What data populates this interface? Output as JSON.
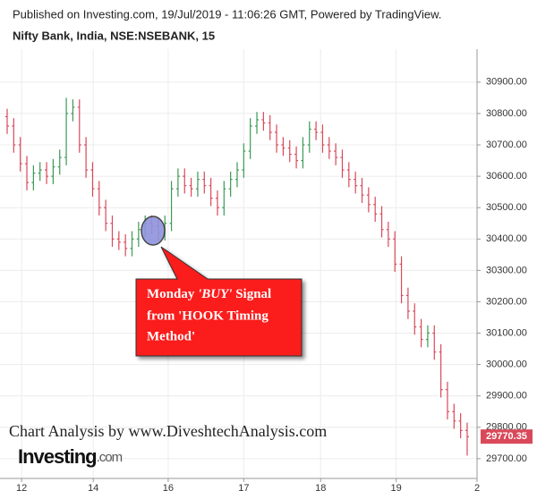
{
  "header": "Published on Investing.com, 19/Jul/2019 - 11:06:26 GMT, Powered by TradingView.",
  "chart_data": {
    "type": "ohlc",
    "title": "Nifty Bank, India, NSE:NSEBANK, 15",
    "up_color": "#3c9a55",
    "down_color": "#d9495a",
    "grid": true,
    "x": [
      0,
      1,
      2,
      3,
      4,
      5,
      6,
      7,
      8,
      9,
      10,
      11,
      12,
      13,
      14,
      15,
      16,
      17,
      18,
      19,
      20,
      21,
      22,
      23,
      24,
      25,
      26,
      27,
      28,
      29,
      30,
      31,
      32,
      33,
      34,
      35,
      36,
      37,
      38,
      39,
      40,
      41,
      42,
      43,
      44,
      45,
      46,
      47,
      48,
      49,
      50,
      51,
      52,
      53,
      54,
      55,
      56,
      57,
      58,
      59,
      60,
      61,
      62,
      63,
      64,
      65,
      66,
      67,
      68,
      69,
      70
    ],
    "open": [
      30790,
      30760,
      30700,
      30640,
      30580,
      30610,
      30620,
      30600,
      30630,
      30660,
      30800,
      30820,
      30700,
      30620,
      30560,
      30500,
      30450,
      30400,
      30390,
      30370,
      30400,
      30430,
      30450,
      30440,
      30420,
      30450,
      30560,
      30600,
      30570,
      30560,
      30590,
      30570,
      30530,
      30500,
      30560,
      30590,
      30620,
      30680,
      30760,
      30780,
      30770,
      30740,
      30700,
      30690,
      30670,
      30650,
      30700,
      30750,
      30740,
      30700,
      30680,
      30660,
      30620,
      30590,
      30570,
      30540,
      30510,
      30480,
      30430,
      30400,
      30320,
      30220,
      30170,
      30120,
      30080,
      30100,
      30040,
      29920,
      29850,
      29820,
      29790
    ],
    "high": [
      30815,
      30785,
      30725,
      30665,
      30635,
      30645,
      30645,
      30655,
      30685,
      30850,
      30845,
      30845,
      30725,
      30645,
      30585,
      30525,
      30475,
      30425,
      30415,
      30425,
      30455,
      30475,
      30475,
      30465,
      30475,
      30585,
      30625,
      30625,
      30595,
      30615,
      30615,
      30595,
      30555,
      30585,
      30615,
      30645,
      30705,
      30785,
      30805,
      30805,
      30795,
      30765,
      30725,
      30715,
      30695,
      30725,
      30775,
      30775,
      30765,
      30725,
      30705,
      30685,
      30645,
      30615,
      30595,
      30565,
      30535,
      30505,
      30455,
      30425,
      30345,
      30245,
      30195,
      30145,
      30125,
      30125,
      30065,
      29945,
      29875,
      29845,
      29815
    ],
    "low": [
      30735,
      30675,
      30615,
      30555,
      30555,
      30585,
      30575,
      30575,
      30605,
      30635,
      30775,
      30675,
      30595,
      30535,
      30475,
      30425,
      30375,
      30365,
      30345,
      30345,
      30375,
      30405,
      30415,
      30395,
      30395,
      30425,
      30535,
      30545,
      30535,
      30535,
      30545,
      30505,
      30475,
      30475,
      30535,
      30565,
      30595,
      30655,
      30735,
      30745,
      30715,
      30675,
      30665,
      30645,
      30625,
      30625,
      30675,
      30715,
      30675,
      30655,
      30635,
      30595,
      30565,
      30545,
      30515,
      30485,
      30455,
      30405,
      30375,
      30295,
      30195,
      30145,
      30095,
      30055,
      30055,
      30015,
      29895,
      29825,
      29795,
      29765,
      29710
    ],
    "close": [
      30760,
      30700,
      30640,
      30580,
      30610,
      30620,
      30600,
      30630,
      30660,
      30800,
      30820,
      30700,
      30620,
      30560,
      30500,
      30450,
      30400,
      30390,
      30370,
      30400,
      30430,
      30450,
      30440,
      30420,
      30450,
      30560,
      30600,
      30570,
      30560,
      30590,
      30570,
      30530,
      30500,
      30560,
      30590,
      30620,
      30680,
      30760,
      30780,
      30770,
      30740,
      30700,
      30690,
      30670,
      30650,
      30700,
      30750,
      30740,
      30700,
      30680,
      30660,
      30620,
      30590,
      30570,
      30540,
      30510,
      30480,
      30430,
      30400,
      30320,
      30220,
      30170,
      30120,
      30080,
      30100,
      30040,
      29920,
      29850,
      29820,
      29790,
      29770
    ],
    "last_price": 29770.35,
    "xlim": [
      0,
      71.5
    ],
    "xticks": [
      {
        "value": 2.2,
        "label": "12"
      },
      {
        "value": 13.1,
        "label": "14"
      },
      {
        "value": 24.5,
        "label": "16"
      },
      {
        "value": 36.0,
        "label": "17"
      },
      {
        "value": 47.7,
        "label": "18"
      },
      {
        "value": 59.2,
        "label": "19"
      },
      {
        "value": 71.5,
        "label": "2"
      }
    ],
    "ylim": [
      29637,
      31005
    ],
    "yticks": [
      {
        "value": 29700,
        "label": "29700.00"
      },
      {
        "value": 29800,
        "label": "29800.00"
      },
      {
        "value": 29900,
        "label": "29900.00"
      },
      {
        "value": 30000,
        "label": "30000.00"
      },
      {
        "value": 30100,
        "label": "30100.00"
      },
      {
        "value": 30200,
        "label": "30200.00"
      },
      {
        "value": 30300,
        "label": "30300.00"
      },
      {
        "value": 30400,
        "label": "30400.00"
      },
      {
        "value": 30500,
        "label": "30500.00"
      },
      {
        "value": 30600,
        "label": "30600.00"
      },
      {
        "value": 30700,
        "label": "30700.00"
      },
      {
        "value": 30800,
        "label": "30800.00"
      },
      {
        "value": 30900,
        "label": "30900.00"
      }
    ],
    "annotation": {
      "line1": [
        "Monday ",
        "'BUY'",
        " Signal"
      ],
      "line2": "from 'HOOK Timing",
      "line3": "Method'"
    },
    "watermark": "Chart Analysis by www.DiveshtechAnalysis.com",
    "logo": [
      "Investing",
      ".com"
    ]
  }
}
